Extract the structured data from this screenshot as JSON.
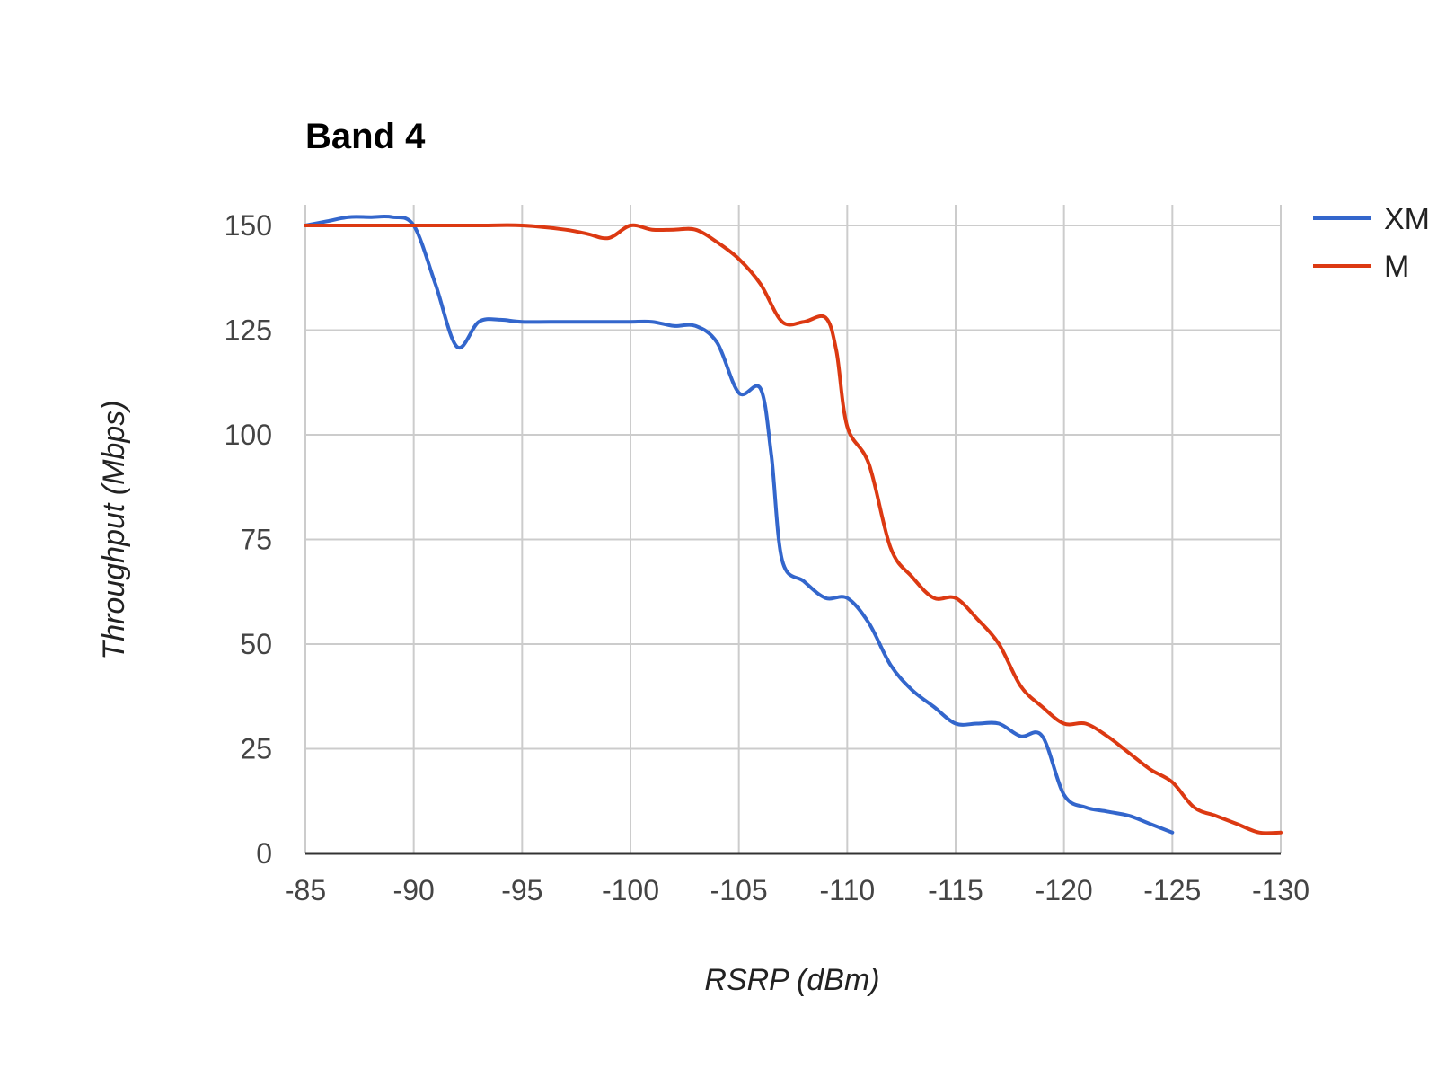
{
  "chart_data": {
    "type": "line",
    "title": "Band 4",
    "xlabel": "RSRP (dBm)",
    "ylabel": "Throughput (Mbps)",
    "xlim": [
      -85,
      -130
    ],
    "ylim": [
      0,
      150
    ],
    "x_ticks": [
      "-85",
      "-90",
      "-95",
      "-100",
      "-105",
      "-110",
      "-115",
      "-120",
      "-125",
      "-130"
    ],
    "y_ticks": [
      "0",
      "25",
      "50",
      "75",
      "100",
      "125",
      "150"
    ],
    "grid": true,
    "legend_position": "right",
    "series": [
      {
        "name": "XM",
        "color": "#3366cc",
        "points": [
          [
            -85,
            150
          ],
          [
            -86,
            151
          ],
          [
            -87,
            152
          ],
          [
            -88,
            152
          ],
          [
            -89,
            152
          ],
          [
            -90,
            150
          ],
          [
            -91,
            136
          ],
          [
            -92,
            121
          ],
          [
            -93,
            127
          ],
          [
            -94,
            127.5
          ],
          [
            -95,
            127
          ],
          [
            -97,
            127
          ],
          [
            -99,
            127
          ],
          [
            -100,
            127
          ],
          [
            -101,
            127
          ],
          [
            -102,
            126
          ],
          [
            -103,
            126
          ],
          [
            -104,
            122
          ],
          [
            -105,
            110
          ],
          [
            -106,
            111
          ],
          [
            -106.5,
            95
          ],
          [
            -107,
            70
          ],
          [
            -108,
            65
          ],
          [
            -109,
            61
          ],
          [
            -110,
            61
          ],
          [
            -111,
            55
          ],
          [
            -112,
            45
          ],
          [
            -113,
            39
          ],
          [
            -114,
            35
          ],
          [
            -115,
            31
          ],
          [
            -116,
            31
          ],
          [
            -117,
            31
          ],
          [
            -118,
            28
          ],
          [
            -119,
            28
          ],
          [
            -120,
            14
          ],
          [
            -121,
            11
          ],
          [
            -122,
            10
          ],
          [
            -123,
            9
          ],
          [
            -124,
            7
          ],
          [
            -125,
            5
          ]
        ]
      },
      {
        "name": "M",
        "color": "#dc3912",
        "points": [
          [
            -85,
            150
          ],
          [
            -87,
            150
          ],
          [
            -89,
            150
          ],
          [
            -91,
            150
          ],
          [
            -93,
            150
          ],
          [
            -95,
            150
          ],
          [
            -97,
            149
          ],
          [
            -98,
            148
          ],
          [
            -99,
            147
          ],
          [
            -100,
            150
          ],
          [
            -101,
            149
          ],
          [
            -102,
            149
          ],
          [
            -103,
            149
          ],
          [
            -104,
            146
          ],
          [
            -105,
            142
          ],
          [
            -106,
            136
          ],
          [
            -107,
            127
          ],
          [
            -108,
            127
          ],
          [
            -109,
            128
          ],
          [
            -109.5,
            120
          ],
          [
            -110,
            102
          ],
          [
            -111,
            93
          ],
          [
            -112,
            73
          ],
          [
            -113,
            66
          ],
          [
            -114,
            61
          ],
          [
            -115,
            61
          ],
          [
            -116,
            56
          ],
          [
            -117,
            50
          ],
          [
            -118,
            40
          ],
          [
            -119,
            35
          ],
          [
            -120,
            31
          ],
          [
            -121,
            31
          ],
          [
            -122,
            28
          ],
          [
            -123,
            24
          ],
          [
            -124,
            20
          ],
          [
            -125,
            17
          ],
          [
            -126,
            11
          ],
          [
            -127,
            9
          ],
          [
            -128,
            7
          ],
          [
            -129,
            5
          ],
          [
            -130,
            5
          ]
        ]
      }
    ]
  }
}
